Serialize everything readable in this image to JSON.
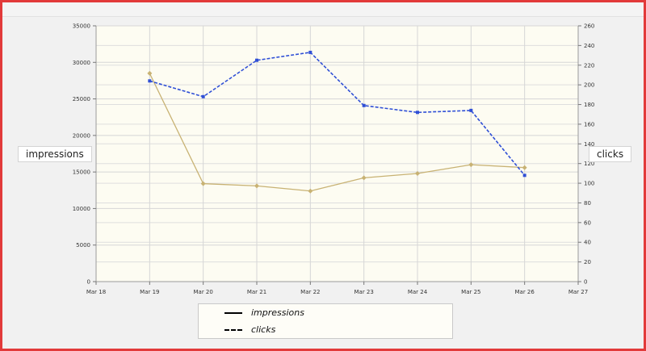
{
  "colors": {
    "impressions": "#c8b273",
    "clicks": "#2f4fd6",
    "plot_background": "#fdfcf2",
    "frame_border": "#e23a3a"
  },
  "chart_data": {
    "type": "line",
    "x": [
      "Mar 19",
      "Mar 20",
      "Mar 21",
      "Mar 22",
      "Mar 23",
      "Mar 24",
      "Mar 25",
      "Mar 26"
    ],
    "x_tick_labels": [
      "Mar 18",
      "Mar 19",
      "Mar 20",
      "Mar 21",
      "Mar 22",
      "Mar 23",
      "Mar 24",
      "Mar 25",
      "Mar 26",
      "Mar 27"
    ],
    "series": [
      {
        "name": "impressions",
        "axis": "left",
        "style": "solid",
        "values": [
          28500,
          13400,
          13100,
          12400,
          14200,
          14800,
          16000,
          15600
        ]
      },
      {
        "name": "clicks",
        "axis": "right",
        "style": "dashed",
        "values": [
          204,
          188,
          225,
          233,
          179,
          172,
          174,
          108
        ]
      }
    ],
    "left_axis": {
      "label": "impressions",
      "ylim": [
        0,
        35000
      ],
      "ticks": [
        "0",
        "5000",
        "10000",
        "15000",
        "20000",
        "25000",
        "30000",
        "35000"
      ]
    },
    "right_axis": {
      "label": "clicks",
      "ylim": [
        0,
        260
      ],
      "ticks": [
        "0",
        "20",
        "40",
        "60",
        "80",
        "100",
        "120",
        "140",
        "160",
        "180",
        "200",
        "220",
        "240",
        "260"
      ]
    },
    "grid": true,
    "legend_position": "bottom-center"
  }
}
